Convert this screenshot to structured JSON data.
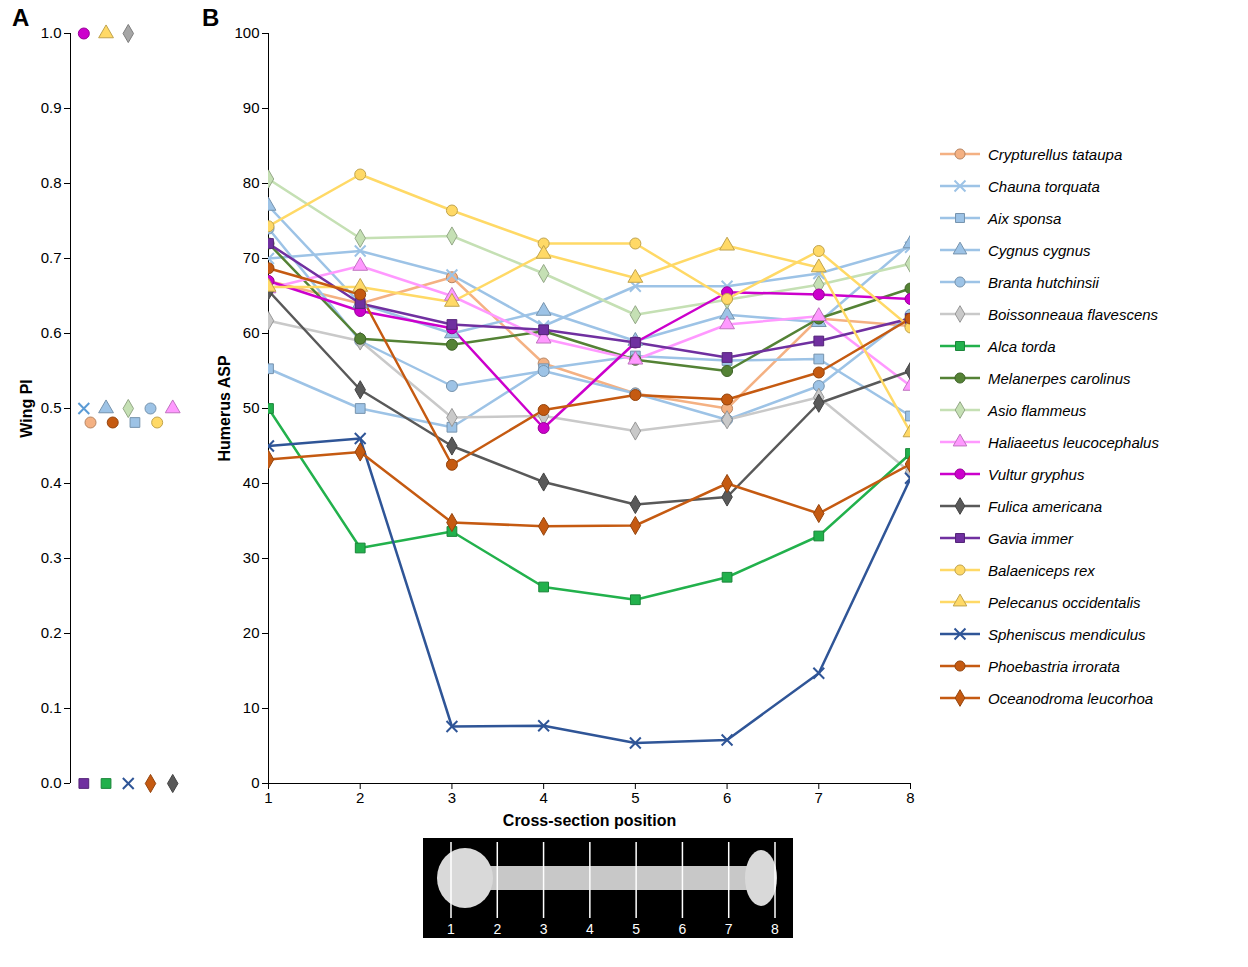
{
  "chart_data": [
    {
      "panel": "A",
      "type": "scatter",
      "y_label": "Wing PI",
      "tick_labels": "y",
      "ylim": [
        0,
        1
      ],
      "yticks": [
        {
          "value": 0,
          "label": "0.0"
        },
        {
          "value": 0.1,
          "label": "0.1"
        },
        {
          "value": 0.2,
          "label": "0.2"
        },
        {
          "value": 0.3,
          "label": "0.3"
        },
        {
          "value": 0.4,
          "label": "0.4"
        },
        {
          "value": 0.5,
          "label": "0.5"
        },
        {
          "value": 0.6,
          "label": "0.6"
        },
        {
          "value": 0.7,
          "label": "0.7"
        },
        {
          "value": 0.8,
          "label": "0.8"
        },
        {
          "value": 0.9,
          "label": "0.9"
        },
        {
          "value": 1,
          "label": "1.0"
        }
      ],
      "series": [
        {
          "name": "Vultur gryphus",
          "color": "#cc00cc",
          "marker": "circle",
          "values": [
            1.0
          ]
        },
        {
          "name": "Pelecanus occidentalis",
          "color": "#ffd966",
          "marker": "triangle",
          "values": [
            1.0
          ]
        },
        {
          "name": "Boissonneaua flavescens",
          "color": "#a6a6a6",
          "marker": "diamond",
          "values": [
            1.0
          ]
        },
        {
          "name": "Chauna torquata",
          "color": "#5b9bd5",
          "marker": "x",
          "values": [
            0.5
          ]
        },
        {
          "name": "Cygnus cygnus",
          "color": "#9dc3e6",
          "marker": "triangle",
          "values": [
            0.5
          ]
        },
        {
          "name": "Asio flammeus",
          "color": "#c5e0b4",
          "marker": "diamond",
          "values": [
            0.5
          ]
        },
        {
          "name": "Branta hutchinsii",
          "color": "#9dc3e6",
          "marker": "circle",
          "values": [
            0.5
          ]
        },
        {
          "name": "Haliaeetus leucocephalus",
          "color": "#ff99ff",
          "marker": "triangle",
          "values": [
            0.5
          ]
        },
        {
          "name": "Crypturellus tataupa",
          "color": "#f4b183",
          "marker": "circle",
          "values": [
            0.5
          ]
        },
        {
          "name": "Phoebastria irrorata",
          "color": "#c55a11",
          "marker": "circle",
          "values": [
            0.5
          ]
        },
        {
          "name": "Aix sponsa",
          "color": "#9dc3e6",
          "marker": "square",
          "values": [
            0.5
          ]
        },
        {
          "name": "Balaeniceps rex",
          "color": "#ffd966",
          "marker": "circle",
          "values": [
            0.5
          ]
        },
        {
          "name": "Gavia immer",
          "color": "#7030a0",
          "marker": "square",
          "values": [
            0.0
          ]
        },
        {
          "name": "Alca torda",
          "color": "#22b14c",
          "marker": "square",
          "values": [
            0.0
          ]
        },
        {
          "name": "Spheniscus mendiculus",
          "color": "#2f5597",
          "marker": "x",
          "values": [
            0.0
          ]
        },
        {
          "name": "Oceanodroma leucorhoa",
          "color": "#c55a11",
          "marker": "diamond",
          "values": [
            0.0
          ]
        },
        {
          "name": "Fulica americana",
          "color": "#595959",
          "marker": "diamond",
          "values": [
            0.0
          ]
        }
      ]
    },
    {
      "panel": "B",
      "type": "line",
      "x_label": "Cross-section position",
      "y_label": "Humerus ASP",
      "legend": "right",
      "x": [
        1,
        2,
        3,
        4,
        5,
        6,
        7,
        8
      ],
      "xlim": [
        1,
        8
      ],
      "xticks": [
        1,
        2,
        3,
        4,
        5,
        6,
        7,
        8
      ],
      "ylim": [
        0,
        100
      ],
      "yticks": [
        0,
        10,
        20,
        30,
        40,
        50,
        60,
        70,
        80,
        90,
        100
      ],
      "series": [
        {
          "name": "Crypturellus tataupa",
          "color": "#f4b183",
          "marker": "circle",
          "values": [
            67,
            64,
            67.5,
            56,
            52,
            50,
            62,
            61
          ]
        },
        {
          "name": "Chauna torquata",
          "color": "#9dc3e6",
          "marker": "x",
          "values": [
            70,
            71,
            67.8,
            61,
            66.3,
            66.3,
            68,
            71.5
          ]
        },
        {
          "name": "Aix sponsa",
          "color": "#9dc3e6",
          "marker": "square",
          "values": [
            55.3,
            50,
            47.5,
            55.3,
            57,
            56.4,
            56.6,
            49
          ]
        },
        {
          "name": "Cygnus cygnus",
          "color": "#9dc3e6",
          "marker": "triangle",
          "values": [
            77,
            64,
            60,
            63,
            59,
            62.5,
            61.5,
            72
          ]
        },
        {
          "name": "Branta hutchinsii",
          "color": "#9dc3e6",
          "marker": "circle",
          "values": [
            74,
            59,
            53,
            55,
            52,
            48.5,
            53,
            62.5
          ]
        },
        {
          "name": "Boissonneaua flavescens",
          "color": "#c9c9c9",
          "marker": "diamond",
          "values": [
            61.7,
            59,
            48.8,
            49,
            47,
            48.5,
            51.5,
            41.5
          ]
        },
        {
          "name": "Alca torda",
          "color": "#22b14c",
          "marker": "square",
          "values": [
            50,
            31.4,
            33.6,
            26.2,
            24.5,
            27.5,
            33,
            44
          ]
        },
        {
          "name": "Melanerpes carolinus",
          "color": "#548235",
          "marker": "circle",
          "values": [
            72,
            59.3,
            58.5,
            60.3,
            56.5,
            55,
            62,
            66
          ]
        },
        {
          "name": "Asio flammeus",
          "color": "#c5e0b4",
          "marker": "diamond",
          "values": [
            80.6,
            72.7,
            73,
            68,
            62.5,
            64.5,
            66.5,
            69.3
          ]
        },
        {
          "name": "Haliaeetus leucocephalus",
          "color": "#ff99ff",
          "marker": "triangle",
          "values": [
            66,
            69,
            65,
            59.3,
            56.5,
            61.2,
            62.3,
            53
          ]
        },
        {
          "name": "Vultur gryphus",
          "color": "#cc00cc",
          "marker": "circle",
          "values": [
            67,
            63,
            60.7,
            47.4,
            58.8,
            65.5,
            65.2,
            64.6
          ]
        },
        {
          "name": "Fulica americana",
          "color": "#595959",
          "marker": "diamond",
          "values": [
            65.7,
            52.5,
            45,
            40.2,
            37.2,
            38.2,
            50.7,
            55
          ]
        },
        {
          "name": "Gavia immer",
          "color": "#7030a0",
          "marker": "square",
          "values": [
            72,
            64,
            61.2,
            60.5,
            58.8,
            56.8,
            59,
            62
          ]
        },
        {
          "name": "Balaeniceps rex",
          "color": "#ffd966",
          "marker": "circle",
          "values": [
            74.3,
            81.2,
            76.4,
            72,
            72,
            64.6,
            71,
            60.8
          ]
        },
        {
          "name": "Pelecanus occidentalis",
          "color": "#ffd966",
          "marker": "triangle",
          "values": [
            66.2,
            66.2,
            64.2,
            70.6,
            67.4,
            71.7,
            68.8,
            46.8
          ]
        },
        {
          "name": "Spheniscus mendiculus",
          "color": "#2f5597",
          "marker": "x",
          "values": [
            45,
            46,
            7.6,
            7.7,
            5.4,
            5.8,
            14.7,
            40.7
          ]
        },
        {
          "name": "Phoebastria irrorata",
          "color": "#c55a11",
          "marker": "circle",
          "values": [
            68.7,
            65.2,
            42.5,
            49.8,
            51.8,
            51.2,
            54.8,
            62
          ]
        },
        {
          "name": "Oceanodroma leucorhoa",
          "color": "#c55a11",
          "marker": "diamond",
          "values": [
            43.2,
            44.2,
            34.8,
            34.3,
            34.4,
            40,
            36,
            42.6
          ]
        }
      ]
    }
  ]
}
